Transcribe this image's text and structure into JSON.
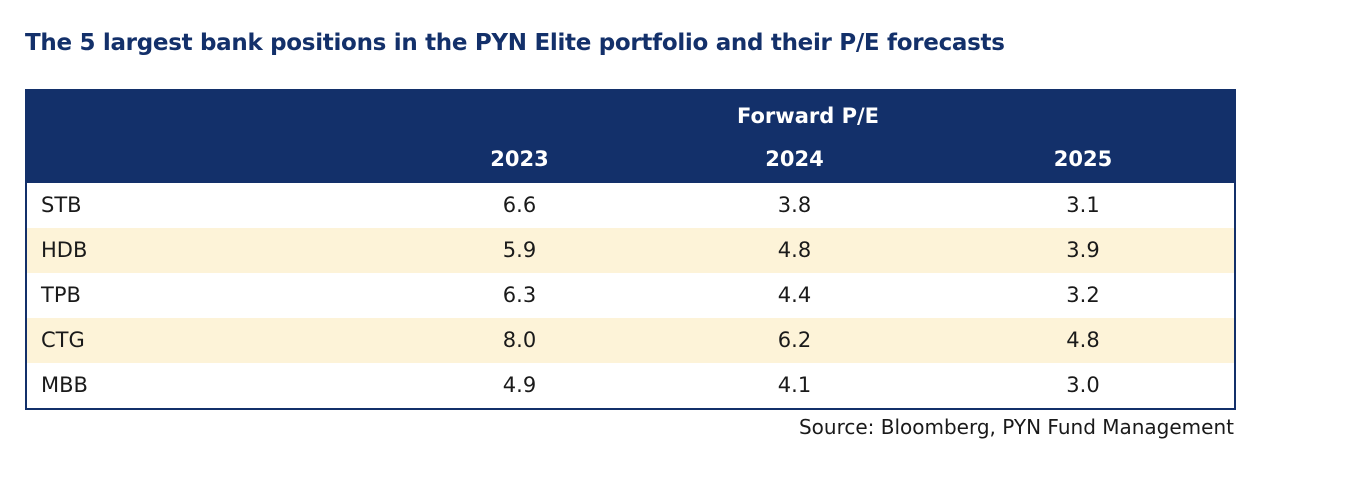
{
  "title": "The 5 largest bank positions in the PYN Elite portfolio and their P/E forecasts",
  "table": {
    "group_header": "Forward P/E",
    "columns": [
      "2023",
      "2024",
      "2025"
    ],
    "rows": [
      [
        "STB",
        "6.6",
        "3.8",
        "3.1"
      ],
      [
        "HDB",
        "5.9",
        "4.8",
        "3.9"
      ],
      [
        "TPB",
        "6.3",
        "4.4",
        "3.2"
      ],
      [
        "CTG",
        "8.0",
        "6.2",
        "4.8"
      ],
      [
        "MBB",
        "4.9",
        "4.1",
        "3.0"
      ]
    ]
  },
  "source": "Source: Bloomberg, PYN Fund Management"
}
